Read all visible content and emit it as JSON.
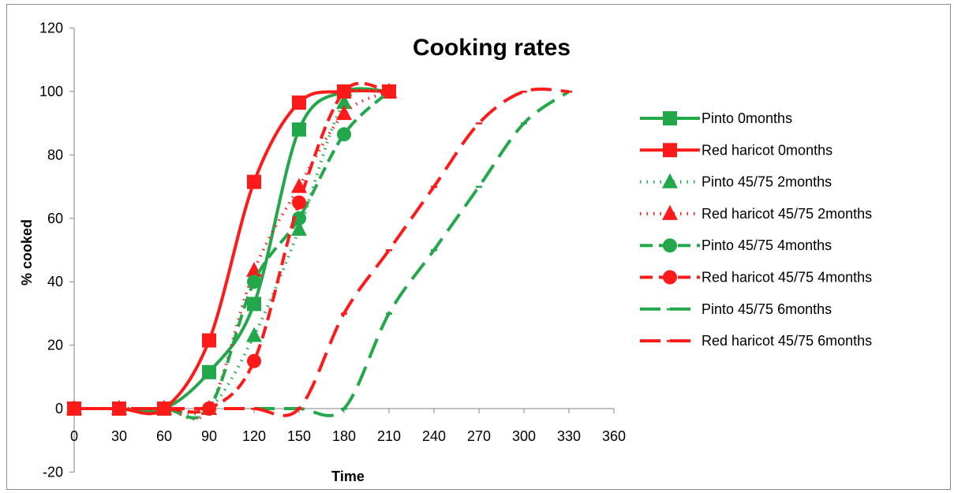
{
  "chart_data": {
    "type": "line",
    "title": "Cooking rates",
    "xlabel": "Time",
    "ylabel": "% cooked",
    "xlim": [
      0,
      360
    ],
    "ylim": [
      -20,
      120
    ],
    "x_ticks": [
      "0",
      "30",
      "60",
      "90",
      "120",
      "150",
      "180",
      "210",
      "240",
      "270",
      "300",
      "330",
      "360"
    ],
    "y_ticks": [
      "-20",
      "0",
      "20",
      "40",
      "60",
      "80",
      "100",
      "120"
    ],
    "legend_position": "right",
    "grid": false,
    "series": [
      {
        "name": "Pinto 0months",
        "color": "#22a84a",
        "dash": "solid",
        "marker": "square",
        "x": [
          0,
          30,
          60,
          90,
          120,
          150,
          180,
          210
        ],
        "y": [
          0,
          0,
          0,
          11.5,
          33,
          88,
          100,
          100
        ]
      },
      {
        "name": "Red haricot 0months",
        "color": "#ff1a1a",
        "dash": "solid",
        "marker": "square",
        "x": [
          0,
          30,
          60,
          90,
          120,
          150,
          180,
          210
        ],
        "y": [
          0,
          0,
          0,
          21.5,
          71.5,
          96.5,
          100,
          100
        ]
      },
      {
        "name": "Pinto 45/75 2months",
        "color": "#22a84a",
        "dash": "dot",
        "marker": "triangle",
        "x": [
          0,
          30,
          60,
          90,
          120,
          150,
          180,
          210
        ],
        "y": [
          0,
          0,
          0,
          0,
          23,
          56.5,
          96.5,
          100
        ]
      },
      {
        "name": "Red haricot 45/75 2months",
        "color": "#ff1a1a",
        "dash": "dot",
        "marker": "triangle",
        "x": [
          0,
          30,
          60,
          90,
          120,
          150,
          180,
          210
        ],
        "y": [
          0,
          0,
          0,
          0,
          43.5,
          70,
          93,
          100
        ]
      },
      {
        "name": "Pinto 45/75 4months",
        "color": "#22a84a",
        "dash": "dash",
        "marker": "circle",
        "x": [
          0,
          30,
          60,
          90,
          120,
          150,
          180,
          210
        ],
        "y": [
          0,
          0,
          0,
          0,
          40,
          60,
          86.5,
          100
        ]
      },
      {
        "name": "Red haricot 45/75 4months",
        "color": "#ff1a1a",
        "dash": "dash",
        "marker": "circle",
        "x": [
          0,
          30,
          60,
          90,
          120,
          150,
          180,
          210
        ],
        "y": [
          0,
          0,
          0,
          0,
          15,
          65,
          100,
          100
        ]
      },
      {
        "name": "Pinto 45/75 6months",
        "color": "#22a84a",
        "dash": "longdash",
        "marker": "dash",
        "x": [
          0,
          30,
          60,
          90,
          120,
          150,
          180,
          210,
          240,
          270,
          300,
          330
        ],
        "y": [
          0,
          0,
          0,
          0,
          0,
          0,
          0,
          30,
          50,
          70,
          90,
          100
        ]
      },
      {
        "name": "Red haricot 45/75 6months",
        "color": "#ff1a1a",
        "dash": "longdash",
        "marker": "dash",
        "x": [
          0,
          30,
          60,
          90,
          120,
          150,
          180,
          210,
          240,
          270,
          300,
          330
        ],
        "y": [
          0,
          0,
          0,
          0,
          0,
          0,
          30,
          50,
          70,
          90,
          100,
          100
        ]
      }
    ]
  }
}
